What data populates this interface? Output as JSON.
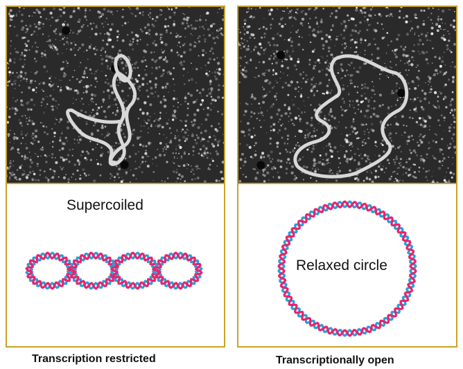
{
  "panels": {
    "left": {
      "micrograph_desc": "supercoiled-dna-micrograph",
      "diagram_label": "Supercoiled",
      "caption": "Transcription restricted"
    },
    "right": {
      "micrograph_desc": "relaxed-dna-micrograph",
      "diagram_label": "Relaxed circle",
      "caption": "Transcriptionally open"
    }
  },
  "colors": {
    "frame": "#c9a227",
    "strand_blue": "#2a9fd6",
    "strand_pink": "#e8246e",
    "micrograph_bg": "#2a2a2a"
  }
}
